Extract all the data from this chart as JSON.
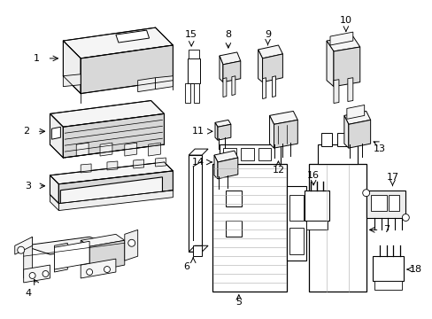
{
  "bg": "#ffffff",
  "lc": "#000000",
  "gray1": "#d8d8d8",
  "gray2": "#eeeeee",
  "gray3": "#f5f5f5"
}
